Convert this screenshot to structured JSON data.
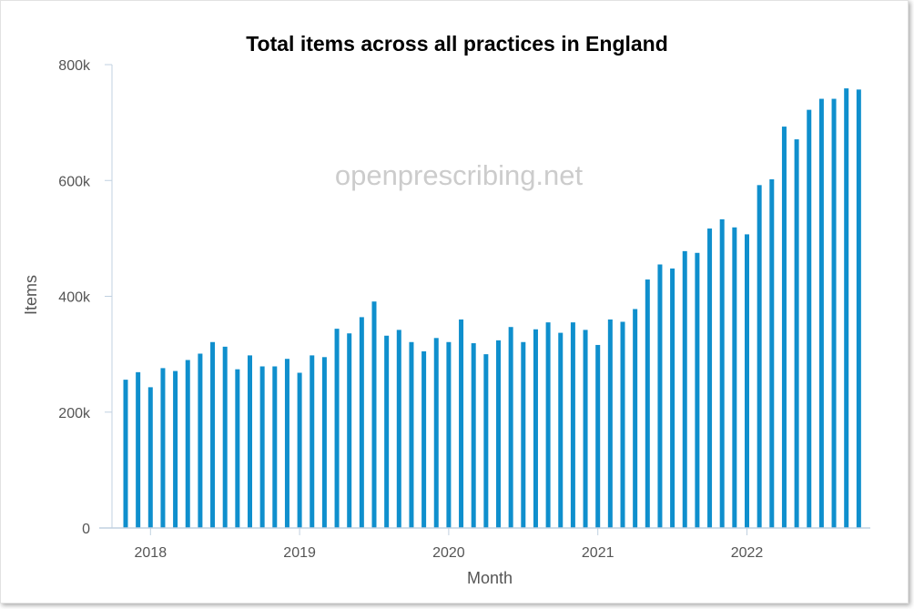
{
  "chart_data": {
    "type": "bar",
    "title": "Total items across all practices in England",
    "xlabel": "Month",
    "ylabel": "Items",
    "watermark": "openprescribing.net",
    "ylim": [
      0,
      800000
    ],
    "y_ticks": [
      0,
      200000,
      400000,
      600000,
      800000
    ],
    "y_tick_labels": [
      "0",
      "200k",
      "400k",
      "600k",
      "800k"
    ],
    "x_ticks": [
      "2018-01",
      "2019-01",
      "2020-01",
      "2021-01",
      "2022-01"
    ],
    "x_tick_labels": [
      "2018",
      "2019",
      "2020",
      "2021",
      "2022"
    ],
    "colors": {
      "bar": "#0F8FCD",
      "axis": "#C0D0E0",
      "text": "#555555"
    },
    "start_month": "2017-11",
    "values": [
      256000,
      269000,
      243000,
      276000,
      271000,
      290000,
      301000,
      321000,
      313000,
      274000,
      298000,
      279000,
      279000,
      292000,
      268000,
      298000,
      295000,
      344000,
      336000,
      364000,
      391000,
      332000,
      342000,
      321000,
      305000,
      328000,
      321000,
      360000,
      319000,
      300000,
      324000,
      347000,
      321000,
      343000,
      355000,
      337000,
      355000,
      342000,
      316000,
      360000,
      356000,
      378000,
      429000,
      455000,
      448000,
      478000,
      475000,
      517000,
      533000,
      519000,
      507000,
      592000,
      602000,
      693000,
      671000,
      722000,
      741000,
      741000,
      759000,
      757000
    ]
  }
}
